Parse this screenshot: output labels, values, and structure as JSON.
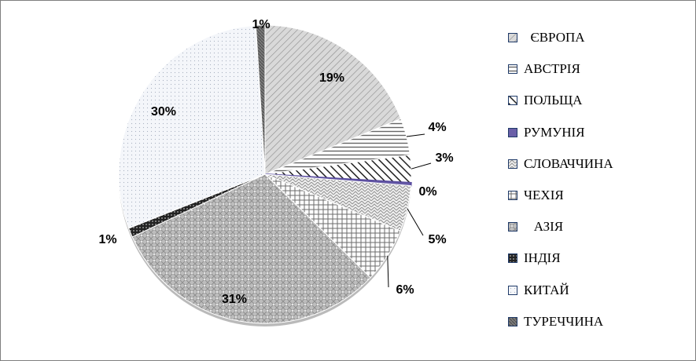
{
  "chart_data": {
    "type": "pie",
    "categories": [
      "ЄВРОПА",
      "АВСТРІЯ",
      "ПОЛЬЩА",
      "РУМУНІЯ",
      "СЛОВАЧЧИНА",
      "ЧЕХІЯ",
      "АЗІЯ",
      "ІНДІЯ",
      "КИТАЙ",
      "ТУРЕЧЧИНА"
    ],
    "legend_labels": [
      "  ЄВРОПА",
      "АВСТРІЯ",
      "ПОЛЬЩА",
      "РУМУНІЯ",
      "СЛОВАЧЧИНА",
      "ЧЕХІЯ",
      "   АЗІЯ",
      "ІНДІЯ",
      "КИТАЙ",
      "ТУРЕЧЧИНА"
    ],
    "values": [
      19,
      4,
      3,
      0.3,
      5,
      6,
      31,
      1,
      30,
      1
    ],
    "data_labels": [
      "19%",
      "4%",
      "3%",
      "0%",
      "5%",
      "6%",
      "31%",
      "1%",
      "30%",
      "1%"
    ],
    "legend_position": "right",
    "start": "top",
    "direction": "clockwise",
    "pattern_colors": [
      "#5a5a5a",
      "#3c3c3c",
      "#2a2a2a",
      "#5b4ea0",
      "#666666",
      "#555555",
      "#6a6a6a",
      "#1a1a1a",
      "#aab4c4",
      "#4a4a4a"
    ]
  }
}
